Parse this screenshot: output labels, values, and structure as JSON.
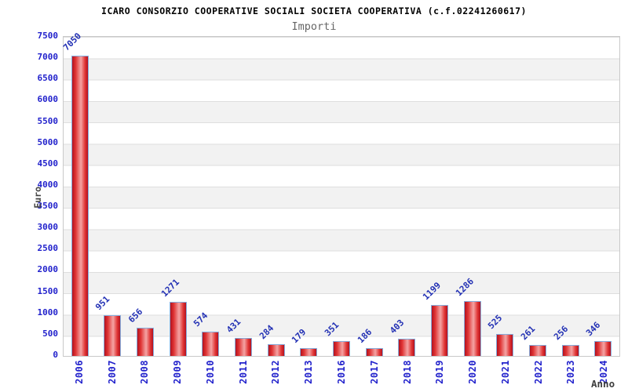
{
  "chart_data": {
    "type": "bar",
    "title": "ICARO CONSORZIO COOPERATIVE SOCIALI SOCIETA COOPERATIVA (c.f.02241260617)",
    "subtitle": "Importi",
    "xlabel": "Anno",
    "ylabel": "Euro",
    "categories": [
      "2006",
      "2007",
      "2008",
      "2009",
      "2010",
      "2011",
      "2012",
      "2013",
      "2016",
      "2017",
      "2018",
      "2019",
      "2020",
      "2021",
      "2022",
      "2023",
      "2024"
    ],
    "values": [
      7050,
      951,
      656,
      1271,
      574,
      431,
      284,
      179,
      351,
      186,
      403,
      1199,
      1286,
      525,
      261,
      256,
      346
    ],
    "ylim": [
      0,
      7500
    ],
    "ytick_step": 500,
    "grid": "horizontal-bands-alternating",
    "legend": "none",
    "colors": {
      "bar_fill_dark": "#b2121f",
      "bar_fill_light": "#f4a2a2",
      "bar_border": "#85aede",
      "tick_label": "#2222cc",
      "value_label": "#2230b4",
      "axis_title": "#444444",
      "band_gray": "#f2f2f2",
      "band_white": "#ffffff",
      "gridline": "#dedede",
      "plot_border": "#c9c9c9",
      "title": "#000000",
      "subtitle": "#666666"
    }
  }
}
